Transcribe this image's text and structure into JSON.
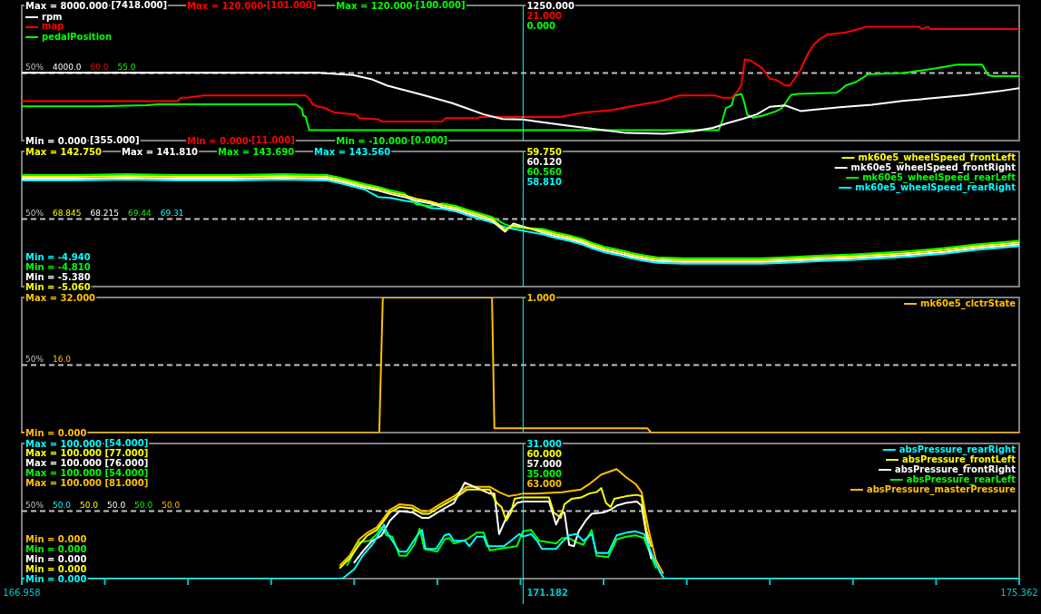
{
  "chart_data": [
    {
      "type": "line",
      "xlim": [
        166.958,
        175.362
      ],
      "tick_labels": "y",
      "legend": "top left",
      "marker": "none",
      "ylim": [
        0,
        8000
      ],
      "yticks": [
        {
          "value": 8000,
          "label": "Max = 8000.000"
        },
        {
          "value": 0,
          "label": "Min = 0.000"
        }
      ],
      "y2lim": [
        0,
        120
      ],
      "y2ticks": [
        {
          "value": 120,
          "label": "Max = 120.000"
        },
        {
          "value": 0,
          "label": "Min = 0.000"
        }
      ],
      "y3lim": [
        -10,
        120
      ],
      "y3ticks": [
        {
          "value": 120,
          "label": "Max = 120.000"
        },
        {
          "value": -10,
          "label": "Min = -10.000"
        }
      ],
      "ref_lines": [
        {
          "axis": "y",
          "value": 4000,
          "label": "4000.0",
          "color": "#c0c0c0",
          "line_style": "dashed"
        },
        {
          "axis": "x",
          "value": 171.182,
          "color": "#00ffff"
        }
      ],
      "annotations": [
        "50%",
        "1250.000",
        "21.000",
        "0.000",
        "60.0",
        "55.0",
        "[7418.000]",
        "[355.000]",
        "[101.000]",
        "[11.000]",
        "[100.000]",
        "[0.000]"
      ],
      "series": [
        {
          "name": "rpm",
          "color": "#ffffff",
          "x": [
            166.96,
            169.46,
            169.75,
            169.91,
            170.04,
            170.31,
            170.58,
            170.85,
            171.01,
            171.18,
            171.3,
            171.57,
            171.83,
            172.05,
            172.37,
            172.61,
            172.78,
            172.91,
            173.04,
            173.15,
            173.26,
            173.39,
            173.52,
            173.63,
            173.85,
            174.12,
            174.38,
            174.65,
            174.92,
            175.19,
            175.36
          ],
          "values": [
            4020,
            4020,
            3880,
            3620,
            3250,
            2750,
            2230,
            1550,
            1280,
            1250,
            1130,
            870,
            650,
            450,
            400,
            550,
            750,
            1050,
            1300,
            1550,
            2000,
            2080,
            1750,
            1830,
            1970,
            2120,
            2350,
            2520,
            2700,
            2920,
            3100
          ]
        },
        {
          "name": "map",
          "color": "#ff0000",
          "axis": "y2",
          "x": [
            166.96,
            168.27,
            168.3,
            168.35,
            168.49,
            169.35,
            169.38,
            169.41,
            169.46,
            169.51,
            169.59,
            169.78,
            169.8,
            169.96,
            169.99,
            170.5,
            170.53,
            170.8,
            170.82,
            171.49,
            171.7,
            171.92,
            172.07,
            172.23,
            172.34,
            172.5,
            172.8,
            172.86,
            172.94,
            172.99,
            173.02,
            173.05,
            173.1,
            173.2,
            173.26,
            173.31,
            173.39,
            173.43,
            173.47,
            173.52,
            173.58,
            173.63,
            173.68,
            173.74,
            173.9,
            174.01,
            174.07,
            174.52,
            174.54,
            174.59,
            174.62,
            175.36
          ],
          "values": [
            35,
            35,
            38,
            38,
            40,
            40,
            37,
            32,
            30,
            29,
            25,
            23,
            20,
            19,
            17,
            17,
            20,
            20,
            21,
            21,
            25,
            27,
            30,
            33,
            35,
            40,
            40,
            38,
            38,
            44,
            49,
            72,
            71,
            64,
            55,
            54,
            49,
            49,
            55,
            63,
            77,
            85,
            90,
            94,
            96,
            99,
            101,
            101,
            99,
            101,
            99,
            99
          ]
        },
        {
          "name": "pedalPosition",
          "color": "#00ff00",
          "axis": "y3",
          "x": [
            166.96,
            167.6,
            168.01,
            168.11,
            169.27,
            169.3,
            169.32,
            169.33,
            169.35,
            169.38,
            172.83,
            172.86,
            172.89,
            172.94,
            172.96,
            173.02,
            173.04,
            173.07,
            173.12,
            173.2,
            173.31,
            173.36,
            173.44,
            173.5,
            173.82,
            173.85,
            173.9,
            173.98,
            174.04,
            174.09,
            174.39,
            174.63,
            174.84,
            175.05,
            175.1,
            175.14,
            175.36
          ],
          "values": [
            23,
            23,
            24,
            25,
            25,
            22,
            20,
            14,
            13,
            0,
            0,
            9,
            21,
            24,
            33,
            35,
            29,
            15,
            12,
            14,
            18,
            21,
            34,
            35,
            36,
            38,
            43,
            46,
            50,
            54,
            55,
            59,
            63,
            63,
            53,
            52,
            52
          ]
        }
      ]
    },
    {
      "type": "line",
      "xlim": [
        166.958,
        175.362
      ],
      "tick_labels": "y",
      "legend": "top right",
      "marker": "none",
      "ylim": [
        -5.06,
        142.75
      ],
      "yticks": [
        {
          "value": 142.75,
          "label": "Max = 142.750"
        },
        {
          "value": -5.06,
          "label": "Min = -5.060"
        }
      ],
      "ref_lines": [
        {
          "axis": "y",
          "value": 68.845,
          "label": "68.845",
          "color": "#c0c0c0",
          "line_style": "dashed"
        },
        {
          "axis": "x",
          "value": 171.182,
          "color": "#00ffff"
        }
      ],
      "annotations": [
        "50%",
        "59.750",
        "60.120",
        "60.560",
        "58.810",
        "Max = 141.810",
        "68.215",
        "Min = -5.380",
        "Max = 143.690",
        "69.44",
        "Min = -4.810",
        "Max = 143.560",
        "69.31",
        "Min = -4.940"
      ],
      "x": [
        166.96,
        167.4,
        167.84,
        168.28,
        168.72,
        169.16,
        169.53,
        169.64,
        169.85,
        169.96,
        170.07,
        170.18,
        170.28,
        170.4,
        170.5,
        170.62,
        170.71,
        170.84,
        170.92,
        171.03,
        171.1,
        171.18,
        171.35,
        171.46,
        171.57,
        171.68,
        171.78,
        171.88,
        172.0,
        172.09,
        172.21,
        172.31,
        172.53,
        172.86,
        173.19,
        173.39,
        173.7,
        173.93,
        174.21,
        174.46,
        174.73,
        175.0,
        175.36
      ],
      "series": [
        {
          "name": "mk60e5_wheelSpeed_frontLeft",
          "color": "#ffff00",
          "values": [
            115,
            115,
            116,
            115,
            115,
            116,
            115,
            112,
            105,
            102,
            98,
            95,
            91,
            88,
            84,
            81,
            77,
            72,
            69,
            57,
            62,
            59.75,
            56,
            52,
            49,
            45,
            40,
            36,
            33,
            30,
            27,
            25,
            24,
            24,
            24,
            25,
            27,
            28,
            30,
            32,
            35,
            39,
            43
          ]
        },
        {
          "name": "mk60e5_wheelSpeed_frontRight",
          "color": "#ffffff",
          "x": [
            166.96,
            167.4,
            167.84,
            168.28,
            168.72,
            169.16,
            169.53,
            169.64,
            169.85,
            169.96,
            170.07,
            170.18,
            170.28,
            170.4,
            170.5,
            170.62,
            170.71,
            170.84,
            170.92,
            171.03,
            171.1,
            171.35,
            171.46,
            171.57,
            171.68,
            171.78,
            171.88,
            172.0,
            172.09,
            172.21,
            172.31,
            172.53,
            172.86,
            173.19,
            173.39,
            173.7,
            173.93,
            174.21,
            174.46,
            174.73,
            175.0,
            175.36
          ],
          "values": [
            113,
            113,
            114,
            113,
            113,
            114,
            113,
            110,
            103,
            100,
            96,
            93,
            89,
            86,
            82,
            79,
            75,
            70,
            67,
            55,
            64,
            54,
            50,
            47,
            43,
            38,
            34,
            31,
            28,
            25,
            23,
            22,
            22,
            22,
            23,
            25,
            26,
            28,
            30,
            33,
            37,
            41
          ]
        },
        {
          "name": "mk60e5_wheelSpeed_rearLeft",
          "color": "#00ff00",
          "x": [
            166.96,
            167.4,
            167.84,
            168.28,
            168.72,
            169.16,
            169.53,
            169.64,
            169.85,
            169.96,
            170.07,
            170.18,
            170.28,
            170.4,
            170.5,
            170.62,
            170.71,
            170.84,
            170.92,
            171.03,
            171.1,
            171.35,
            171.46,
            171.57,
            171.68,
            171.78,
            171.88,
            172.0,
            172.09,
            172.21,
            172.31,
            172.53,
            172.86,
            173.19,
            173.39,
            173.7,
            173.93,
            174.21,
            174.46,
            174.73,
            175.0,
            175.36
          ],
          "values": [
            117,
            117,
            118,
            117,
            117,
            118,
            117,
            114,
            107,
            104,
            100,
            97,
            85,
            83,
            86,
            83,
            79,
            74,
            71,
            63,
            60,
            58,
            54,
            51,
            47,
            42,
            38,
            35,
            32,
            29,
            27,
            26,
            26,
            26,
            27,
            29,
            30,
            32,
            34,
            37,
            41,
            45
          ]
        },
        {
          "name": "mk60e5_wheelSpeed_rearRight",
          "color": "#00ffff",
          "x": [
            166.96,
            167.4,
            167.84,
            168.28,
            168.72,
            169.16,
            169.53,
            169.64,
            169.85,
            169.96,
            170.07,
            170.18,
            170.28,
            170.4,
            170.5,
            170.62,
            170.71,
            170.84,
            170.92,
            171.03,
            171.1,
            171.35,
            171.46,
            171.57,
            171.68,
            171.78,
            171.88,
            172.0,
            172.09,
            172.21,
            172.31,
            172.53,
            172.86,
            173.19,
            173.39,
            173.7,
            173.93,
            174.21,
            174.46,
            174.73,
            175.0,
            175.36
          ],
          "values": [
            111,
            111,
            112,
            111,
            111,
            112,
            111,
            108,
            101,
            93,
            92,
            89,
            87,
            81,
            80,
            77,
            73,
            68,
            65,
            60,
            58,
            52,
            48,
            45,
            41,
            36,
            32,
            29,
            26,
            23,
            21,
            20,
            20,
            20,
            21,
            23,
            24,
            26,
            28,
            31,
            35,
            39
          ]
        }
      ]
    },
    {
      "type": "line",
      "xlim": [
        166.958,
        175.362
      ],
      "tick_labels": "y",
      "legend": "top right",
      "marker": "none",
      "ylim": [
        0,
        32
      ],
      "yticks": [
        {
          "value": 32,
          "label": "Max = 32.000"
        },
        {
          "value": 0,
          "label": "Min = 0.000"
        }
      ],
      "ref_lines": [
        {
          "axis": "y",
          "value": 16,
          "label": "16.0",
          "color": "#c0c0c0",
          "line_style": "dashed"
        },
        {
          "axis": "x",
          "value": 171.182,
          "color": "#00ffff"
        }
      ],
      "annotations": [
        "50%",
        "1.000"
      ],
      "series": [
        {
          "name": "mk60e5_clctrState",
          "color": "#ffc000",
          "x": [
            166.96,
            169.97,
            170.0,
            170.92,
            170.94,
            172.23,
            172.26,
            175.36
          ],
          "values": [
            0,
            0,
            32,
            32,
            1,
            1,
            0,
            0
          ]
        }
      ]
    },
    {
      "type": "line",
      "xlim": [
        166.958,
        175.362
      ],
      "legend": "top right",
      "marker": "none",
      "xticks": [
        166.958,
        {
          "value": 167.658,
          "label": null
        },
        {
          "value": 168.359,
          "label": null
        },
        {
          "value": 169.059,
          "label": null
        },
        {
          "value": 169.759,
          "label": null
        },
        {
          "value": 170.46,
          "label": null
        },
        {
          "value": 171.16,
          "label": null
        },
        {
          "value": 171.86,
          "label": null
        },
        {
          "value": 172.561,
          "label": null
        },
        {
          "value": 173.261,
          "label": null
        },
        {
          "value": 173.961,
          "label": null
        },
        {
          "value": 174.662,
          "label": null
        },
        175.362
      ],
      "ylim": [
        0,
        100
      ],
      "yticks": [
        {
          "value": 100,
          "label": "Max = 100.000"
        },
        {
          "value": 0,
          "label": "Min = 0.000"
        }
      ],
      "ref_lines": [
        {
          "axis": "y",
          "value": 50,
          "label": "50.0",
          "color": "#c0c0c0",
          "line_style": "dashed"
        },
        {
          "axis": "x",
          "value": 171.182,
          "label": "171.182",
          "color": "#00ffff"
        }
      ],
      "annotations": [
        "50%",
        "31.000",
        "60.000",
        "57.000",
        "35.000",
        "63.000",
        "Max = 100.000 [77.000]",
        "50.0",
        "Min = 0.000",
        "Max = 100.000 [76.000]",
        "50.0",
        "Min = 0.000",
        "Max = 100.000 [54.000]",
        "50.0",
        "Min = 0.000",
        "Max = 100.000 [81.000]",
        "50.0",
        "Min = 0.000",
        "[54.000]"
      ],
      "series": [
        {
          "name": "absPressure_rearRight",
          "color": "#00ffff",
          "x": [
            166.96,
            169.66,
            169.76,
            169.83,
            169.91,
            169.99,
            170.01,
            170.03,
            170.08,
            170.14,
            170.2,
            170.29,
            170.33,
            170.36,
            170.45,
            170.52,
            170.56,
            170.6,
            170.69,
            170.73,
            170.79,
            170.85,
            170.88,
            171.02,
            171.08,
            171.15,
            171.18,
            171.25,
            171.3,
            171.34,
            171.46,
            171.51,
            171.57,
            171.63,
            171.69,
            171.76,
            171.8,
            171.9,
            171.97,
            172.05,
            172.13,
            172.2,
            172.28,
            172.34,
            172.37,
            175.36
          ],
          "values": [
            0,
            0,
            7,
            17,
            25,
            36,
            40,
            35,
            28,
            20,
            20,
            32,
            36,
            22,
            22,
            32,
            33,
            28,
            28,
            24,
            31,
            31,
            24,
            24,
            28,
            33,
            31,
            33,
            28,
            22,
            22,
            27,
            32,
            33,
            28,
            33,
            19,
            19,
            32,
            34,
            35,
            33,
            15,
            4,
            0,
            0
          ]
        },
        {
          "name": "absPressure_frontLeft",
          "color": "#ffff00",
          "x": [
            169.64,
            169.72,
            169.8,
            169.87,
            169.95,
            170.01,
            170.06,
            170.14,
            170.25,
            170.33,
            170.39,
            170.48,
            170.6,
            170.71,
            170.9,
            170.96,
            171.0,
            171.04,
            171.08,
            171.11,
            171.17,
            171.18,
            171.4,
            171.44,
            171.5,
            171.53,
            171.59,
            171.67,
            171.74,
            171.8,
            171.84,
            171.88,
            171.92,
            171.95,
            172.05,
            172.14,
            172.18,
            172.22,
            172.26
          ],
          "values": [
            8,
            15,
            25,
            32,
            36,
            43,
            49,
            53,
            52,
            48,
            48,
            53,
            59,
            66,
            66,
            56,
            53,
            43,
            49,
            59,
            60,
            60,
            60,
            49,
            45,
            55,
            59,
            60,
            63,
            64,
            67,
            56,
            53,
            59,
            61,
            62,
            61,
            36,
            24
          ]
        },
        {
          "name": "absPressure_frontRight",
          "color": "#ffffff",
          "x": [
            169.76,
            169.83,
            169.91,
            169.99,
            170.06,
            170.14,
            170.25,
            170.33,
            170.39,
            170.48,
            170.6,
            170.69,
            170.9,
            170.94,
            170.98,
            171.06,
            171.13,
            171.18,
            171.4,
            171.44,
            171.46,
            171.5,
            171.53,
            171.57,
            171.61,
            171.65,
            171.71,
            171.76,
            171.86,
            171.92,
            171.97,
            172.05,
            172.14,
            172.18,
            172.22,
            172.26
          ],
          "values": [
            12,
            20,
            28,
            32,
            43,
            50,
            49,
            45,
            45,
            50,
            56,
            71,
            63,
            63,
            33,
            49,
            56,
            57,
            57,
            46,
            40,
            48,
            49,
            25,
            24,
            35,
            43,
            48,
            49,
            51,
            54,
            56,
            57,
            54,
            33,
            15
          ]
        },
        {
          "name": "absPressure_rearLeft",
          "color": "#00ff00",
          "x": [
            169.7,
            169.8,
            169.89,
            169.95,
            169.99,
            170.03,
            170.08,
            170.14,
            170.2,
            170.27,
            170.31,
            170.35,
            170.46,
            170.52,
            170.56,
            170.6,
            170.71,
            170.79,
            170.85,
            170.9,
            171.13,
            171.18,
            171.25,
            171.32,
            171.46,
            171.51,
            171.57,
            171.63,
            171.69,
            171.76,
            171.8,
            171.9,
            171.97,
            172.05,
            172.13,
            172.2,
            172.3
          ],
          "values": [
            10,
            27,
            28,
            33,
            38,
            32,
            31,
            17,
            17,
            26,
            37,
            22,
            20,
            29,
            30,
            26,
            29,
            34,
            34,
            21,
            24,
            35,
            36,
            28,
            26,
            30,
            30,
            27,
            25,
            36,
            17,
            16,
            29,
            31,
            32,
            30,
            8
          ]
        },
        {
          "name": "absPressure_masterPressure",
          "color": "#ffc000",
          "x": [
            169.64,
            169.72,
            169.8,
            169.87,
            169.95,
            170.01,
            170.06,
            170.14,
            170.25,
            170.33,
            170.39,
            170.48,
            170.6,
            170.71,
            170.9,
            170.98,
            171.06,
            171.13,
            171.18,
            171.29,
            171.51,
            171.67,
            171.74,
            171.84,
            171.97,
            172.05,
            172.13,
            172.18,
            172.24,
            172.3,
            172.36
          ],
          "values": [
            10,
            17,
            29,
            34,
            38,
            45,
            51,
            55,
            54,
            50,
            50,
            55,
            61,
            68,
            68,
            64,
            61,
            62,
            63,
            63,
            64,
            66,
            70,
            77,
            81,
            75,
            70,
            64,
            36,
            14,
            4
          ]
        }
      ]
    }
  ]
}
